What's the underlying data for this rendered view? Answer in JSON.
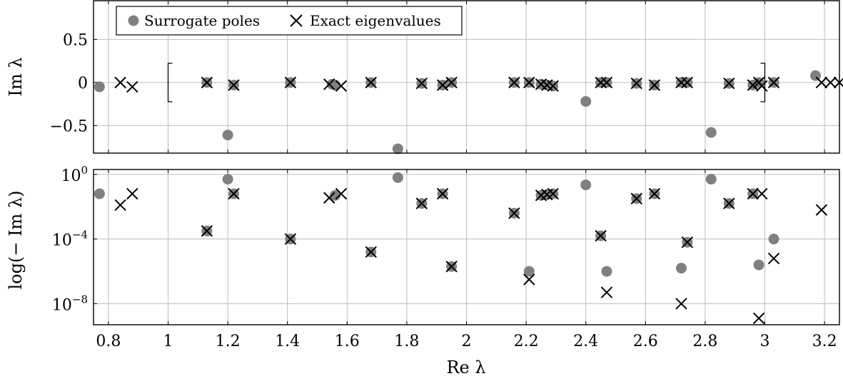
{
  "chart_data": {
    "type": "scatter",
    "x_range": [
      0.75,
      3.25
    ],
    "x_ticks": [
      0.8,
      1,
      1.2,
      1.4,
      1.6,
      1.8,
      2,
      2.2,
      2.4,
      2.6,
      2.8,
      3,
      3.2
    ],
    "x_tick_labels": [
      "0.8",
      "1",
      "1.2",
      "1.4",
      "1.6",
      "1.8",
      "2",
      "2.2",
      "2.4",
      "2.6",
      "2.8",
      "3",
      "3.2"
    ],
    "xlabel": "Re λ",
    "grid": true,
    "legend_position": "top-left",
    "colors": {
      "surrogate": "#808080",
      "exact": "#000000"
    },
    "interval_markers": {
      "left": 1.0,
      "right": 3.0
    },
    "legend": {
      "surrogate_label": "Surrogate poles",
      "exact_label": "Exact eigenvalues"
    },
    "top_panel": {
      "ylabel": "Im λ",
      "ylim": [
        -0.82,
        0.95
      ],
      "y_ticks": [
        0.5,
        0,
        -0.5
      ],
      "y_tick_labels": [
        "0.5",
        "0",
        "−0.5"
      ],
      "series": [
        {
          "name": "Surrogate poles",
          "marker": "circle",
          "x": [
            0.77,
            1.13,
            1.2,
            1.22,
            1.41,
            1.55,
            1.56,
            1.68,
            1.77,
            1.85,
            1.92,
            1.95,
            2.16,
            2.21,
            2.25,
            2.27,
            2.29,
            2.4,
            2.45,
            2.47,
            2.57,
            2.63,
            2.72,
            2.74,
            2.82,
            2.88,
            2.96,
            2.98,
            3.03,
            3.17
          ],
          "y": [
            -0.05,
            0.0,
            -0.61,
            -0.03,
            0.0,
            -0.02,
            -0.03,
            0.0,
            -0.77,
            -0.01,
            -0.03,
            0.0,
            0.0,
            0.0,
            -0.02,
            -0.03,
            -0.04,
            -0.22,
            0.0,
            0.0,
            -0.01,
            -0.03,
            0.0,
            0.0,
            -0.58,
            -0.01,
            -0.03,
            0.0,
            0.0,
            0.08
          ]
        },
        {
          "name": "Exact eigenvalues",
          "marker": "cross",
          "x": [
            0.84,
            0.88,
            1.13,
            1.22,
            1.41,
            1.54,
            1.58,
            1.68,
            1.85,
            1.92,
            1.95,
            2.16,
            2.21,
            2.25,
            2.27,
            2.29,
            2.45,
            2.47,
            2.57,
            2.63,
            2.72,
            2.74,
            2.88,
            2.96,
            2.98,
            2.99,
            3.03,
            3.19,
            3.22,
            3.25
          ],
          "y": [
            0.0,
            -0.05,
            0.0,
            -0.03,
            0.0,
            -0.02,
            -0.04,
            0.0,
            -0.01,
            -0.03,
            0.0,
            0.0,
            0.0,
            -0.02,
            -0.03,
            -0.04,
            0.0,
            0.0,
            -0.01,
            -0.03,
            0.0,
            0.0,
            -0.01,
            -0.03,
            0.0,
            -0.04,
            0.0,
            0.0,
            0.0,
            0.0
          ]
        }
      ]
    },
    "bottom_panel": {
      "ylabel": "log(− Im λ)",
      "y_scale": "log",
      "ylim_log10": [
        -9.3,
        0.3
      ],
      "y_ticks_log10": [
        0,
        -4,
        -8
      ],
      "y_tick_labels": [
        {
          "base": "10",
          "exp": "0"
        },
        {
          "base": "10",
          "exp": "−4"
        },
        {
          "base": "10",
          "exp": "−8"
        }
      ],
      "series": [
        {
          "name": "Surrogate poles",
          "marker": "circle",
          "x": [
            0.77,
            1.13,
            1.2,
            1.22,
            1.41,
            1.56,
            1.68,
            1.77,
            1.85,
            1.92,
            1.95,
            2.16,
            2.21,
            2.25,
            2.27,
            2.29,
            2.4,
            2.45,
            2.47,
            2.57,
            2.63,
            2.72,
            2.74,
            2.82,
            2.88,
            2.96,
            2.98,
            3.03
          ],
          "log10_y": [
            -1.2,
            -3.5,
            -0.3,
            -1.2,
            -4.0,
            -1.3,
            -4.8,
            -0.2,
            -1.8,
            -1.2,
            -5.7,
            -2.4,
            -6.0,
            -1.3,
            -1.25,
            -1.2,
            -0.65,
            -3.8,
            -6.0,
            -1.5,
            -1.2,
            -5.8,
            -4.2,
            -0.3,
            -1.8,
            -1.2,
            -5.6,
            -4.0
          ]
        },
        {
          "name": "Exact eigenvalues",
          "marker": "cross",
          "x": [
            0.84,
            0.88,
            1.13,
            1.22,
            1.41,
            1.54,
            1.58,
            1.68,
            1.85,
            1.92,
            1.95,
            2.16,
            2.21,
            2.25,
            2.27,
            2.29,
            2.45,
            2.47,
            2.57,
            2.63,
            2.72,
            2.74,
            2.88,
            2.96,
            2.98,
            2.99,
            3.03,
            3.19
          ],
          "log10_y": [
            -1.9,
            -1.2,
            -3.5,
            -1.2,
            -4.0,
            -1.45,
            -1.2,
            -4.8,
            -1.8,
            -1.2,
            -5.7,
            -2.4,
            -6.5,
            -1.3,
            -1.25,
            -1.2,
            -3.8,
            -7.3,
            -1.5,
            -1.2,
            -8.0,
            -4.2,
            -1.8,
            -1.2,
            -8.9,
            -1.2,
            -5.2,
            -2.2
          ]
        }
      ]
    }
  }
}
